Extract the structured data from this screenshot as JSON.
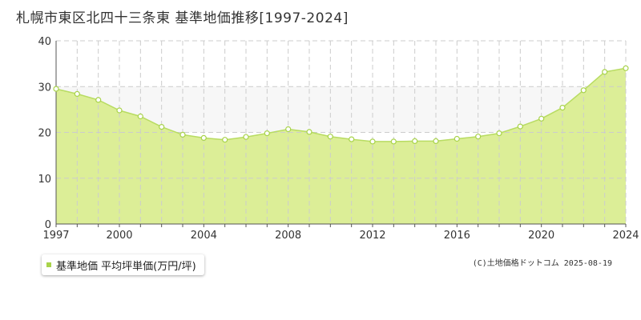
{
  "title": "札幌市東区北四十三条東 基準地価推移[1997-2024]",
  "legend": {
    "label": "基準地価 平均坪単価(万円/坪)"
  },
  "credit": "(C)土地価格ドットコム 2025-08-19",
  "colors": {
    "fill": "#dcee97",
    "line": "#b8dc62",
    "point_fill": "#ffffff",
    "point_stroke": "#a8d34a",
    "band": "#f7f7f7",
    "grid": "#cccccc",
    "axis": "#555555",
    "legend_swatch": "#a8d34a"
  },
  "chart_data": {
    "type": "area",
    "title": "札幌市東区北四十三条東 基準地価推移[1997-2024]",
    "xlabel": "",
    "ylabel": "",
    "xlim": [
      1997,
      2024
    ],
    "ylim": [
      0,
      40
    ],
    "x_ticks": [
      1997,
      2000,
      2004,
      2008,
      2012,
      2016,
      2020,
      2024
    ],
    "y_ticks": [
      0,
      10,
      20,
      30,
      40
    ],
    "grid": true,
    "legend_position": "bottom-left",
    "series": [
      {
        "name": "基準地価 平均坪単価(万円/坪)",
        "x": [
          1997,
          1998,
          1999,
          2000,
          2001,
          2002,
          2003,
          2004,
          2005,
          2006,
          2007,
          2008,
          2009,
          2010,
          2011,
          2012,
          2013,
          2014,
          2015,
          2016,
          2017,
          2018,
          2019,
          2020,
          2021,
          2022,
          2023,
          2024
        ],
        "values": [
          29.5,
          28.4,
          27.1,
          24.8,
          23.5,
          21.2,
          19.5,
          18.8,
          18.4,
          19.0,
          19.8,
          20.7,
          20.1,
          19.1,
          18.5,
          18.0,
          18.0,
          18.1,
          18.1,
          18.6,
          19.1,
          19.8,
          21.3,
          23.0,
          25.4,
          29.2,
          33.2,
          34.0
        ]
      }
    ]
  }
}
